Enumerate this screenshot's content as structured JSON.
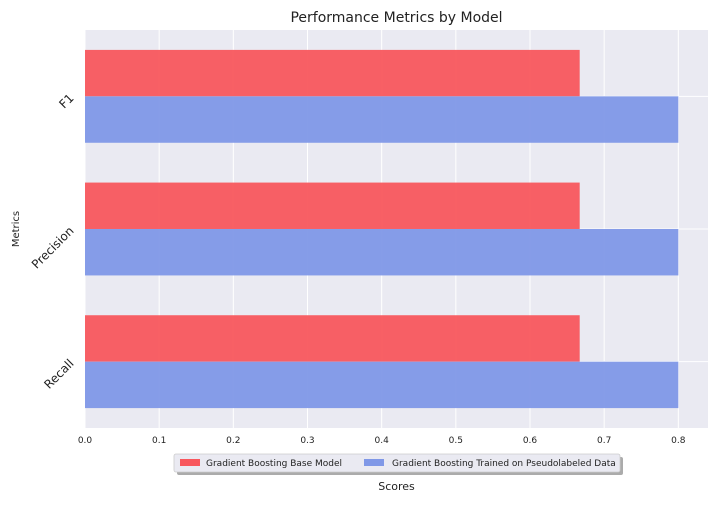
{
  "chart_data": {
    "type": "bar",
    "orientation": "horizontal",
    "title": "Performance Metrics by Model",
    "xlabel": "Scores",
    "ylabel": "Metrics",
    "categories": [
      "F1",
      "Precision",
      "Recall"
    ],
    "series": [
      {
        "name": "Gradient Boosting Base Model",
        "values": [
          0.667,
          0.667,
          0.667
        ],
        "color": "#f8575d"
      },
      {
        "name": "Gradient Boosting Trained on Pseudolabeled Data",
        "values": [
          0.8,
          0.8,
          0.8
        ],
        "color": "#8098e7"
      }
    ],
    "xlim": [
      0.0,
      0.84
    ],
    "xticks": [
      "0.0",
      "0.1",
      "0.2",
      "0.3",
      "0.4",
      "0.5",
      "0.6",
      "0.7",
      "0.8"
    ],
    "grid": true,
    "legend_position": "bottom-center",
    "background_color": "#eaeaf2"
  }
}
